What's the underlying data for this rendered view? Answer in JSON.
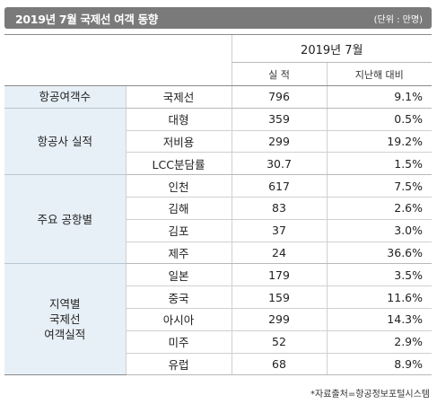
{
  "header": {
    "title": "2019년 7월 국제선 여객 동향",
    "unit": "(단위 : 만명)"
  },
  "table": {
    "period": "2019년 7월",
    "col_performance": "실 적",
    "col_yoy": "지난해 대비",
    "groups": [
      {
        "category": "항공여객수",
        "rows": [
          {
            "item": "국제선",
            "value": "796",
            "yoy": "9.1%"
          }
        ]
      },
      {
        "category": "항공사 실적",
        "rows": [
          {
            "item": "대형",
            "value": "359",
            "yoy": "0.5%"
          },
          {
            "item": "저비용",
            "value": "299",
            "yoy": "19.2%"
          },
          {
            "item": "LCC분담률",
            "value": "30.7",
            "yoy": "1.5%"
          }
        ]
      },
      {
        "category": "주요 공항별",
        "rows": [
          {
            "item": "인천",
            "value": "617",
            "yoy": "7.5%"
          },
          {
            "item": "김해",
            "value": "83",
            "yoy": "2.6%"
          },
          {
            "item": "김포",
            "value": "37",
            "yoy": "3.0%"
          },
          {
            "item": "제주",
            "value": "24",
            "yoy": "36.6%"
          }
        ]
      },
      {
        "category": "지역별\n국제선\n여객실적",
        "rows": [
          {
            "item": "일본",
            "value": "179",
            "yoy": "3.5%"
          },
          {
            "item": "중국",
            "value": "159",
            "yoy": "11.6%"
          },
          {
            "item": "아시아",
            "value": "299",
            "yoy": "14.3%"
          },
          {
            "item": "미주",
            "value": "52",
            "yoy": "2.9%"
          },
          {
            "item": "유럽",
            "value": "68",
            "yoy": "8.9%"
          }
        ]
      }
    ]
  },
  "footer": {
    "source": "*자료출처=항공정보포털시스템"
  }
}
